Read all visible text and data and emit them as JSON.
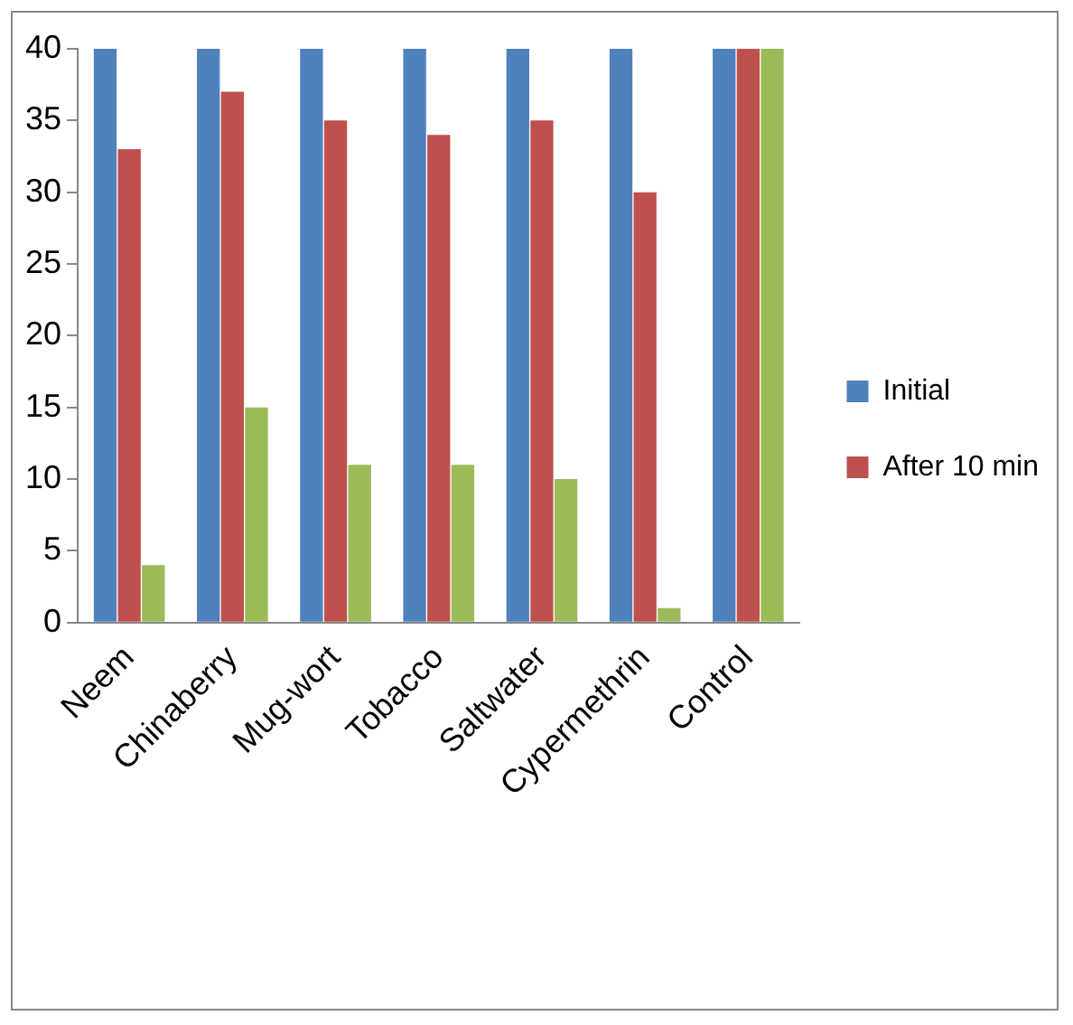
{
  "chart_data": {
    "type": "bar",
    "categories": [
      "Neem",
      "Chinaberry",
      "Mug-wort",
      "Tobacco",
      "Saltwater",
      "Cypermethrin",
      "Control"
    ],
    "series": [
      {
        "name": "Initial",
        "color": "#4f81bd",
        "values": [
          40,
          40,
          40,
          40,
          40,
          40,
          40
        ]
      },
      {
        "name": "After 10 min",
        "color": "#c0504d",
        "values": [
          33,
          37,
          35,
          34,
          35,
          30,
          40
        ]
      },
      {
        "color": "#9bbb59",
        "values": [
          4,
          15,
          11,
          11,
          10,
          1,
          40
        ]
      }
    ],
    "ylim": [
      0,
      40
    ],
    "yticks": [
      0,
      5,
      10,
      15,
      20,
      25,
      30,
      35,
      40
    ],
    "grid": false,
    "legend": "right"
  }
}
